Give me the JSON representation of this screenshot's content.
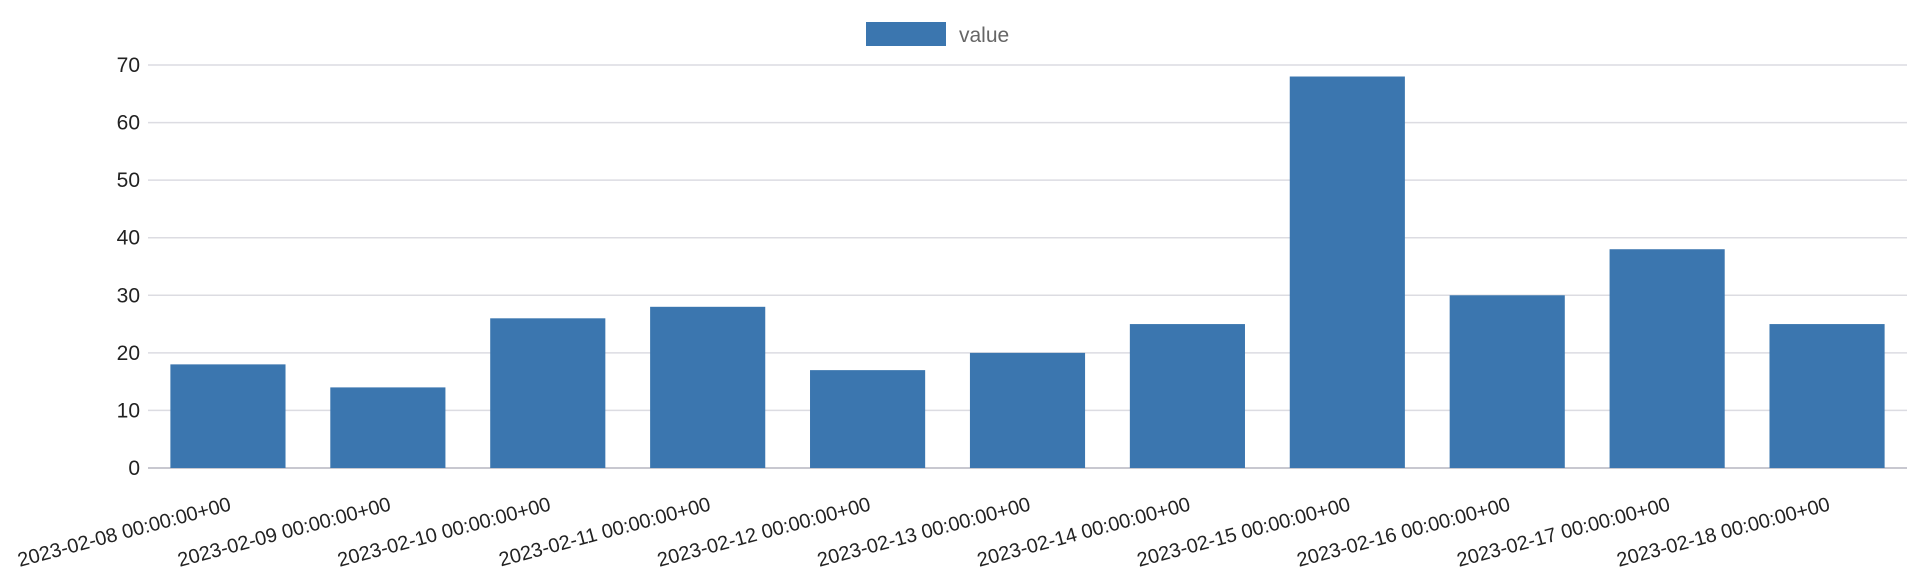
{
  "chart_data": {
    "type": "bar",
    "categories": [
      "2023-02-08 00:00:00+00",
      "2023-02-09 00:00:00+00",
      "2023-02-10 00:00:00+00",
      "2023-02-11 00:00:00+00",
      "2023-02-12 00:00:00+00",
      "2023-02-13 00:00:00+00",
      "2023-02-14 00:00:00+00",
      "2023-02-15 00:00:00+00",
      "2023-02-16 00:00:00+00",
      "2023-02-17 00:00:00+00",
      "2023-02-18 00:00:00+00"
    ],
    "series": [
      {
        "name": "value",
        "values": [
          18,
          14,
          26,
          28,
          17,
          20,
          25,
          68,
          30,
          38,
          25
        ]
      }
    ],
    "yticks": [
      "0",
      "10",
      "20",
      "30",
      "40",
      "50",
      "60",
      "70"
    ],
    "ylim": [
      0,
      70
    ],
    "grid": true,
    "legend": "top-center",
    "colors": {
      "bar": "#3b76af",
      "grid": "#dcdce2",
      "axis": "#c8c8d0"
    }
  }
}
